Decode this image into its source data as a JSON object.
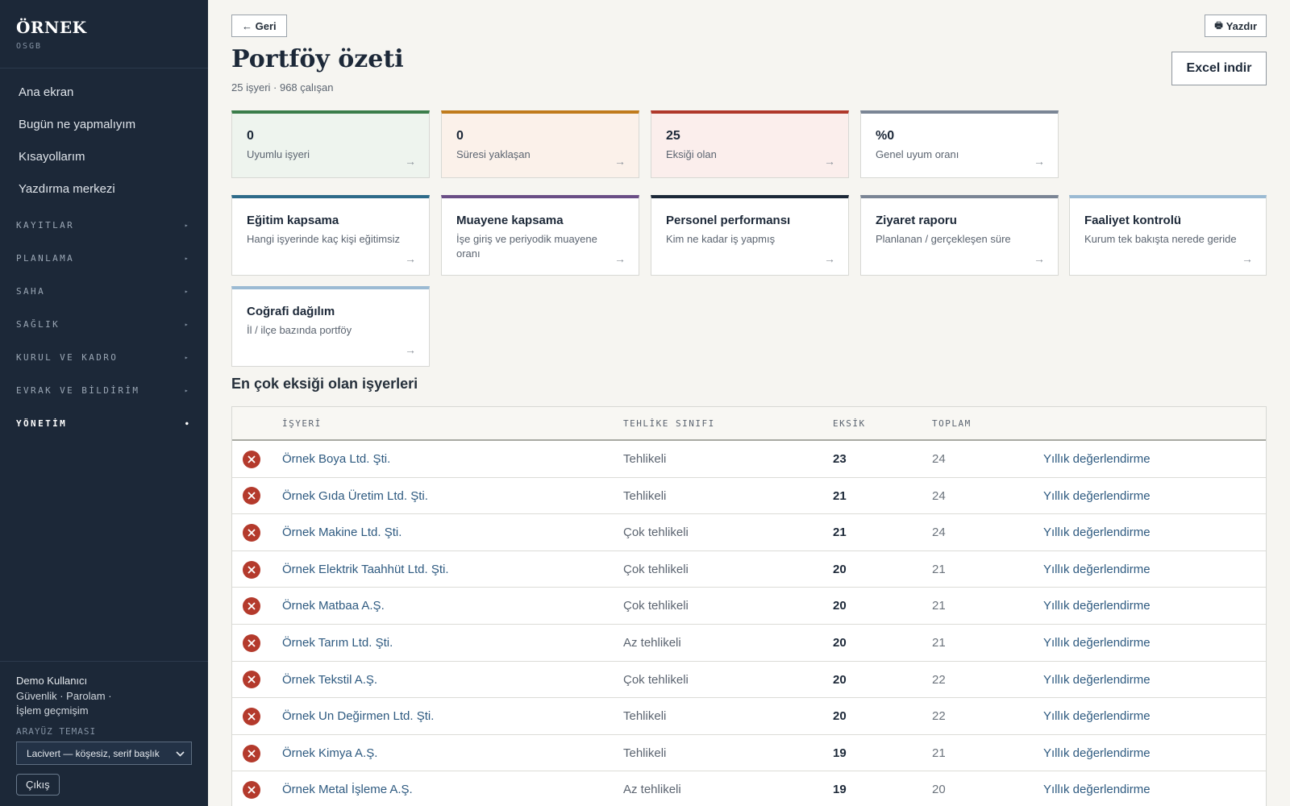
{
  "sidebar": {
    "brand": "ÖRNEK",
    "brand_sub": "OSGB",
    "links": [
      "Ana ekran",
      "Bugün ne yapmalıyım",
      "Kısayollarım",
      "Yazdırma merkezi"
    ],
    "sections": [
      "KAYITLAR",
      "PLANLAMA",
      "SAHA",
      "SAĞLIK",
      "KURUL VE KADRO",
      "EVRAK VE BİLDİRİM",
      "YÖNETİM"
    ],
    "active_section": "YÖNETİM",
    "user": {
      "name": "Demo Kullanıcı",
      "security": "Güvenlik",
      "password": "Parolam",
      "history": "İşlem geçmişim",
      "separator": "·"
    },
    "theme_label": "ARAYÜZ TEMASI",
    "theme_value": "Lacivert — köşesiz, serif başlık",
    "logout": "Çıkış"
  },
  "header": {
    "back": "← Geri",
    "print": "Yazdır",
    "title": "Portföy özeti",
    "subtitle": "25 işyeri · 968 çalışan",
    "excel": "Excel indir"
  },
  "stats": [
    {
      "value": "0",
      "label": "Uyumlu işyeri",
      "color": "#3a7d4a",
      "bg": "#eef4ee"
    },
    {
      "value": "0",
      "label": "Süresi yaklaşan",
      "color": "#c07b1c",
      "bg": "#fbf1ea"
    },
    {
      "value": "25",
      "label": "Eksiği olan",
      "color": "#b0382b",
      "bg": "#fbeeec"
    },
    {
      "value": "%0",
      "label": "Genel uyum oranı",
      "color": "#7a8595",
      "bg": "#ffffff"
    }
  ],
  "links": [
    {
      "title": "Eğitim kapsama",
      "desc": "Hangi işyerinde kaç kişi eğitimsiz",
      "color": "#2e6b8a"
    },
    {
      "title": "Muayene kapsama",
      "desc": "İşe giriş ve periyodik muayene oranı",
      "color": "#6a4e86"
    },
    {
      "title": "Personel performansı",
      "desc": "Kim ne kadar iş yapmış",
      "color": "#1c2838"
    },
    {
      "title": "Ziyaret raporu",
      "desc": "Planlanan / gerçekleşen süre",
      "color": "#7a8595"
    },
    {
      "title": "Faaliyet kontrolü",
      "desc": "Kurum tek bakışta nerede geride",
      "color": "#9bbad3"
    },
    {
      "title": "Coğrafi dağılım",
      "desc": "İl / ilçe bazında portföy",
      "color": "#9bbad3"
    }
  ],
  "arrow": "→",
  "table": {
    "title": "En çok eksiği olan işyerleri",
    "headers": {
      "name": "İŞYERİ",
      "class": "TEHLİKE SINIFI",
      "missing": "EKSİK",
      "total": "TOPLAM"
    },
    "rows": [
      {
        "name": "Örnek Boya Ltd. Şti.",
        "class": "Tehlikeli",
        "missing": "23",
        "total": "24",
        "action": "Yıllık değerlendirme"
      },
      {
        "name": "Örnek Gıda Üretim Ltd. Şti.",
        "class": "Tehlikeli",
        "missing": "21",
        "total": "24",
        "action": "Yıllık değerlendirme"
      },
      {
        "name": "Örnek Makine Ltd. Şti.",
        "class": "Çok tehlikeli",
        "missing": "21",
        "total": "24",
        "action": "Yıllık değerlendirme"
      },
      {
        "name": "Örnek Elektrik Taahhüt Ltd. Şti.",
        "class": "Çok tehlikeli",
        "missing": "20",
        "total": "21",
        "action": "Yıllık değerlendirme"
      },
      {
        "name": "Örnek Matbaa A.Ş.",
        "class": "Çok tehlikeli",
        "missing": "20",
        "total": "21",
        "action": "Yıllık değerlendirme"
      },
      {
        "name": "Örnek Tarım Ltd. Şti.",
        "class": "Az tehlikeli",
        "missing": "20",
        "total": "21",
        "action": "Yıllık değerlendirme"
      },
      {
        "name": "Örnek Tekstil A.Ş.",
        "class": "Çok tehlikeli",
        "missing": "20",
        "total": "22",
        "action": "Yıllık değerlendirme"
      },
      {
        "name": "Örnek Un Değirmen Ltd. Şti.",
        "class": "Tehlikeli",
        "missing": "20",
        "total": "22",
        "action": "Yıllık değerlendirme"
      },
      {
        "name": "Örnek Kimya A.Ş.",
        "class": "Tehlikeli",
        "missing": "19",
        "total": "21",
        "action": "Yıllık değerlendirme"
      },
      {
        "name": "Örnek Metal İşleme A.Ş.",
        "class": "Az tehlikeli",
        "missing": "19",
        "total": "20",
        "action": "Yıllık değerlendirme"
      }
    ]
  }
}
